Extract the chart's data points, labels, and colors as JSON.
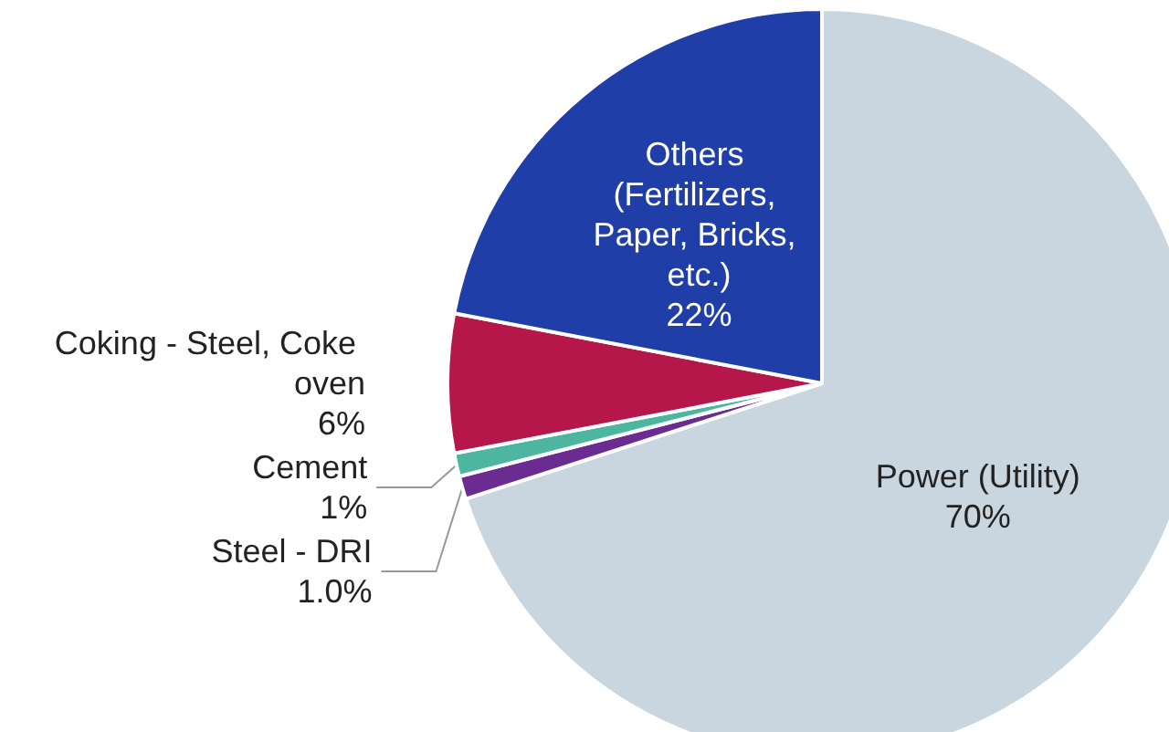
{
  "chart_data": {
    "type": "pie",
    "categories": [
      "Power (Utility)",
      "Steel - DRI",
      "Cement",
      "Coking - Steel, Coke oven",
      "Others (Fertilizers, Paper, Bricks, etc.)"
    ],
    "values": [
      70,
      1.0,
      1,
      6,
      22
    ],
    "value_labels": [
      "70%",
      "1.0%",
      "1%",
      "6%",
      "22%"
    ],
    "colors": [
      "#c9d6df",
      "#6a2c91",
      "#4db6a0",
      "#b5174a",
      "#1f3ea8"
    ],
    "legend": false
  }
}
